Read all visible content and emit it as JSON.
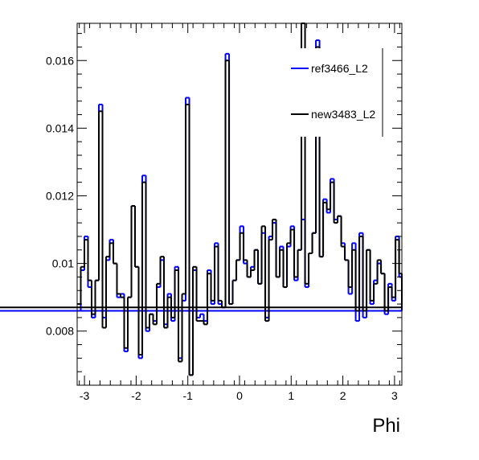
{
  "chart_data": {
    "type": "line",
    "xlabel": "Phi",
    "ylabel": "",
    "xlim": [
      -3.1416,
      3.1416
    ],
    "ylim": [
      0.0064,
      0.0171
    ],
    "x_ticks": [
      -3,
      -2,
      -1,
      0,
      1,
      2,
      3
    ],
    "y_ticks": [
      0.008,
      0.01,
      0.012,
      0.014,
      0.016
    ],
    "x_tick_labels": [
      "-3",
      "-2",
      "-1",
      "0",
      "1",
      "2",
      "3"
    ],
    "y_tick_labels": [
      "0.008",
      "0.01",
      "0.012",
      "0.014",
      "0.016"
    ],
    "grid": false,
    "legend_position": "top-right",
    "bin_edges": [
      -3.1416,
      -3.0716,
      -3.0016,
      -2.9316,
      -2.8616,
      -2.7916,
      -2.7216,
      -2.6516,
      -2.5816,
      -2.5116,
      -2.4416,
      -2.3716,
      -2.3016,
      -2.2316,
      -2.1616,
      -2.0916,
      -2.0216,
      -1.9516,
      -1.8816,
      -1.8116,
      -1.7416,
      -1.6716,
      -1.6016,
      -1.5316,
      -1.4616,
      -1.3916,
      -1.3216,
      -1.2516,
      -1.1816,
      -1.1116,
      -1.0416,
      -0.9716,
      -0.9016,
      -0.8316,
      -0.7616,
      -0.6916,
      -0.6216,
      -0.5516,
      -0.4816,
      -0.4116,
      -0.3416,
      -0.2716,
      -0.2016,
      -0.1316,
      -0.0616,
      0.0084,
      0.0784,
      0.1484,
      0.2184,
      0.2884,
      0.3584,
      0.4284,
      0.4984,
      0.5684,
      0.6384,
      0.7084,
      0.7784,
      0.8484,
      0.9184,
      0.9884,
      1.0584,
      1.1284,
      1.1984,
      1.2684,
      1.3384,
      1.4084,
      1.4784,
      1.5484,
      1.6184,
      1.6884,
      1.7584,
      1.8284,
      1.8984,
      1.9684,
      2.0384,
      2.1084,
      2.1784,
      2.2484,
      2.3184,
      2.3884,
      2.4584,
      2.5284,
      2.5984,
      2.6684,
      2.7384,
      2.8084,
      2.8784,
      2.9484,
      3.0184,
      3.0884,
      3.1416
    ],
    "series": [
      {
        "name": "ref3466_L2",
        "color": "#0000ff",
        "values": [
          0.0086,
          0.0098,
          0.0108,
          0.0093,
          0.0084,
          0.0095,
          0.0147,
          0.0084,
          0.0101,
          0.0107,
          0.01,
          0.009,
          0.0091,
          0.0074,
          0.009,
          0.0117,
          0.0099,
          0.0072,
          0.0126,
          0.008,
          0.0085,
          0.0083,
          0.0093,
          0.0101,
          0.0082,
          0.0091,
          0.0083,
          0.0099,
          0.0072,
          0.0089,
          0.0149,
          0.0067,
          0.0098,
          0.0084,
          0.0085,
          0.0083,
          0.0098,
          0.0088,
          0.0106,
          0.0088,
          0.0087,
          0.0162,
          0.0088,
          0.0095,
          0.0101,
          0.0111,
          0.01,
          0.0096,
          0.0099,
          0.0104,
          0.0094,
          0.0109,
          0.0084,
          0.0108,
          0.0112,
          0.0096,
          0.0105,
          0.0093,
          0.0105,
          0.0111,
          0.0095,
          0.0104,
          0.0113,
          0.0093,
          0.0103,
          0.0109,
          0.0166,
          0.0102,
          0.0119,
          0.0115,
          0.0125,
          0.0113,
          0.0114,
          0.0106,
          0.0101,
          0.0091,
          0.0106,
          0.0083,
          0.0109,
          0.0084,
          0.0104,
          0.0088,
          0.0095,
          0.01,
          0.0097,
          0.0085,
          0.0094,
          0.0089,
          0.0108,
          0.0096,
          0.0086
        ]
      },
      {
        "name": "new3483_L2",
        "color": "#000000",
        "values": [
          0.0088,
          0.0099,
          0.0107,
          0.0095,
          0.0085,
          0.0095,
          0.0145,
          0.0081,
          0.0102,
          0.0106,
          0.01,
          0.0091,
          0.009,
          0.0075,
          0.009,
          0.0117,
          0.0099,
          0.0073,
          0.0124,
          0.0081,
          0.0085,
          0.0082,
          0.0094,
          0.0102,
          0.0081,
          0.009,
          0.0084,
          0.0098,
          0.0071,
          0.0091,
          0.0147,
          0.0067,
          0.0099,
          0.0083,
          0.0083,
          0.0082,
          0.0097,
          0.0089,
          0.0105,
          0.0089,
          0.0087,
          0.016,
          0.0088,
          0.0095,
          0.0101,
          0.0109,
          0.0101,
          0.0096,
          0.0098,
          0.0104,
          0.0094,
          0.0111,
          0.0083,
          0.0107,
          0.0113,
          0.0096,
          0.0104,
          0.0093,
          0.0106,
          0.011,
          0.0096,
          0.0104,
          0.0171,
          0.0094,
          0.0103,
          0.0109,
          0.0164,
          0.0102,
          0.0118,
          0.0116,
          0.0124,
          0.0112,
          0.0114,
          0.0105,
          0.0101,
          0.0093,
          0.0104,
          0.0086,
          0.0108,
          0.0086,
          0.0104,
          0.0089,
          0.0094,
          0.0101,
          0.0097,
          0.0086,
          0.0093,
          0.009,
          0.0107,
          0.0097,
          0.0087
        ]
      }
    ]
  }
}
